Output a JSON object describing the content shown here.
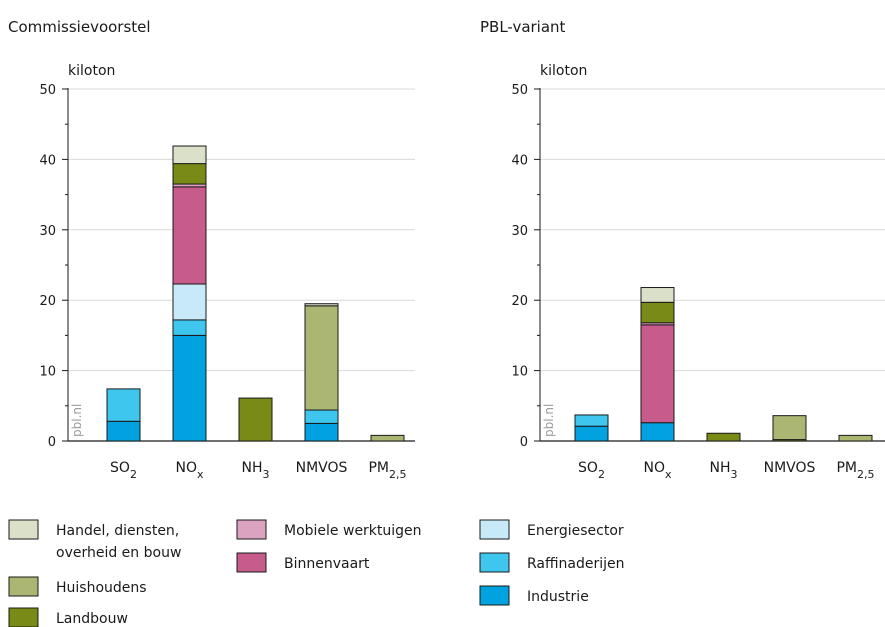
{
  "chart_data": [
    {
      "type": "bar",
      "stacked": true,
      "title": "Commissievoorstel",
      "ylabel": "kiloton",
      "ylim": [
        0,
        50
      ],
      "yticks": [
        0,
        10,
        20,
        30,
        40,
        50
      ],
      "grid": true,
      "watermark": "pbl.nl",
      "categories": [
        {
          "base": "SO",
          "sub": "2"
        },
        {
          "base": "NO",
          "sub": "x"
        },
        {
          "base": "NH",
          "sub": "3"
        },
        {
          "base": "NMVOS",
          "sub": ""
        },
        {
          "base": "PM",
          "sub": "2,5"
        }
      ],
      "series": [
        {
          "name": "Industrie",
          "values": [
            2.8,
            15.0,
            0,
            2.5,
            0
          ]
        },
        {
          "name": "Raffinaderijen",
          "values": [
            4.6,
            2.2,
            0,
            1.9,
            0
          ]
        },
        {
          "name": "Energiesector",
          "values": [
            0,
            5.1,
            0,
            0,
            0
          ]
        },
        {
          "name": "Binnenvaart",
          "values": [
            0,
            13.8,
            0,
            0,
            0
          ]
        },
        {
          "name": "Mobiele werktuigen",
          "values": [
            0,
            0.4,
            0,
            0,
            0
          ]
        },
        {
          "name": "Landbouw",
          "values": [
            0,
            2.9,
            6.1,
            0,
            0
          ]
        },
        {
          "name": "Huishoudens",
          "values": [
            0,
            0,
            0,
            14.8,
            0.8
          ]
        },
        {
          "name": "Handel, diensten, overheid en bouw",
          "values": [
            0,
            2.5,
            0,
            0.3,
            0
          ]
        }
      ]
    },
    {
      "type": "bar",
      "stacked": true,
      "title": "PBL-variant",
      "ylabel": "kiloton",
      "ylim": [
        0,
        50
      ],
      "yticks": [
        0,
        10,
        20,
        30,
        40,
        50
      ],
      "grid": true,
      "watermark": "pbl.nl",
      "categories": [
        {
          "base": "SO",
          "sub": "2"
        },
        {
          "base": "NO",
          "sub": "x"
        },
        {
          "base": "NH",
          "sub": "3"
        },
        {
          "base": "NMVOS",
          "sub": ""
        },
        {
          "base": "PM",
          "sub": "2,5"
        }
      ],
      "series": [
        {
          "name": "Industrie",
          "values": [
            2.1,
            2.6,
            0,
            0,
            0
          ]
        },
        {
          "name": "Raffinaderijen",
          "values": [
            1.6,
            0,
            0,
            0,
            0
          ]
        },
        {
          "name": "Energiesector",
          "values": [
            0,
            0,
            0,
            0,
            0
          ]
        },
        {
          "name": "Binnenvaart",
          "values": [
            0,
            13.9,
            0,
            0,
            0
          ]
        },
        {
          "name": "Mobiele werktuigen",
          "values": [
            0,
            0.3,
            0,
            0,
            0
          ]
        },
        {
          "name": "Landbouw",
          "values": [
            0,
            2.9,
            1.1,
            0.2,
            0
          ]
        },
        {
          "name": "Huishoudens",
          "values": [
            0,
            0,
            0,
            3.4,
            0.8
          ]
        },
        {
          "name": "Handel, diensten, overheid en bouw",
          "values": [
            0,
            2.1,
            0,
            0,
            0
          ]
        }
      ]
    }
  ],
  "series_colors": {
    "Industrie": "#00a2e0",
    "Raffinaderijen": "#3ec6ef",
    "Energiesector": "#c8e9f8",
    "Binnenvaart": "#c75b8c",
    "Mobiele werktuigen": "#dba3bf",
    "Landbouw": "#7a8a16",
    "Huishoudens": "#aab672",
    "Handel, diensten, overheid en bouw": "#dbe0c8"
  },
  "legend": [
    {
      "lines": [
        "Handel, diensten,",
        "overheid en bouw"
      ],
      "series": "Handel, diensten, overheid en bouw"
    },
    {
      "lines": [
        "Huishoudens"
      ],
      "series": "Huishoudens"
    },
    {
      "lines": [
        "Landbouw"
      ],
      "series": "Landbouw"
    },
    {
      "lines": [
        "Mobiele werktuigen"
      ],
      "series": "Mobiele werktuigen"
    },
    {
      "lines": [
        "Binnenvaart"
      ],
      "series": "Binnenvaart"
    },
    {
      "lines": [
        "Energiesector"
      ],
      "series": "Energiesector"
    },
    {
      "lines": [
        "Raffinaderijen"
      ],
      "series": "Raffinaderijen"
    },
    {
      "lines": [
        "Industrie"
      ],
      "series": "Industrie"
    }
  ]
}
